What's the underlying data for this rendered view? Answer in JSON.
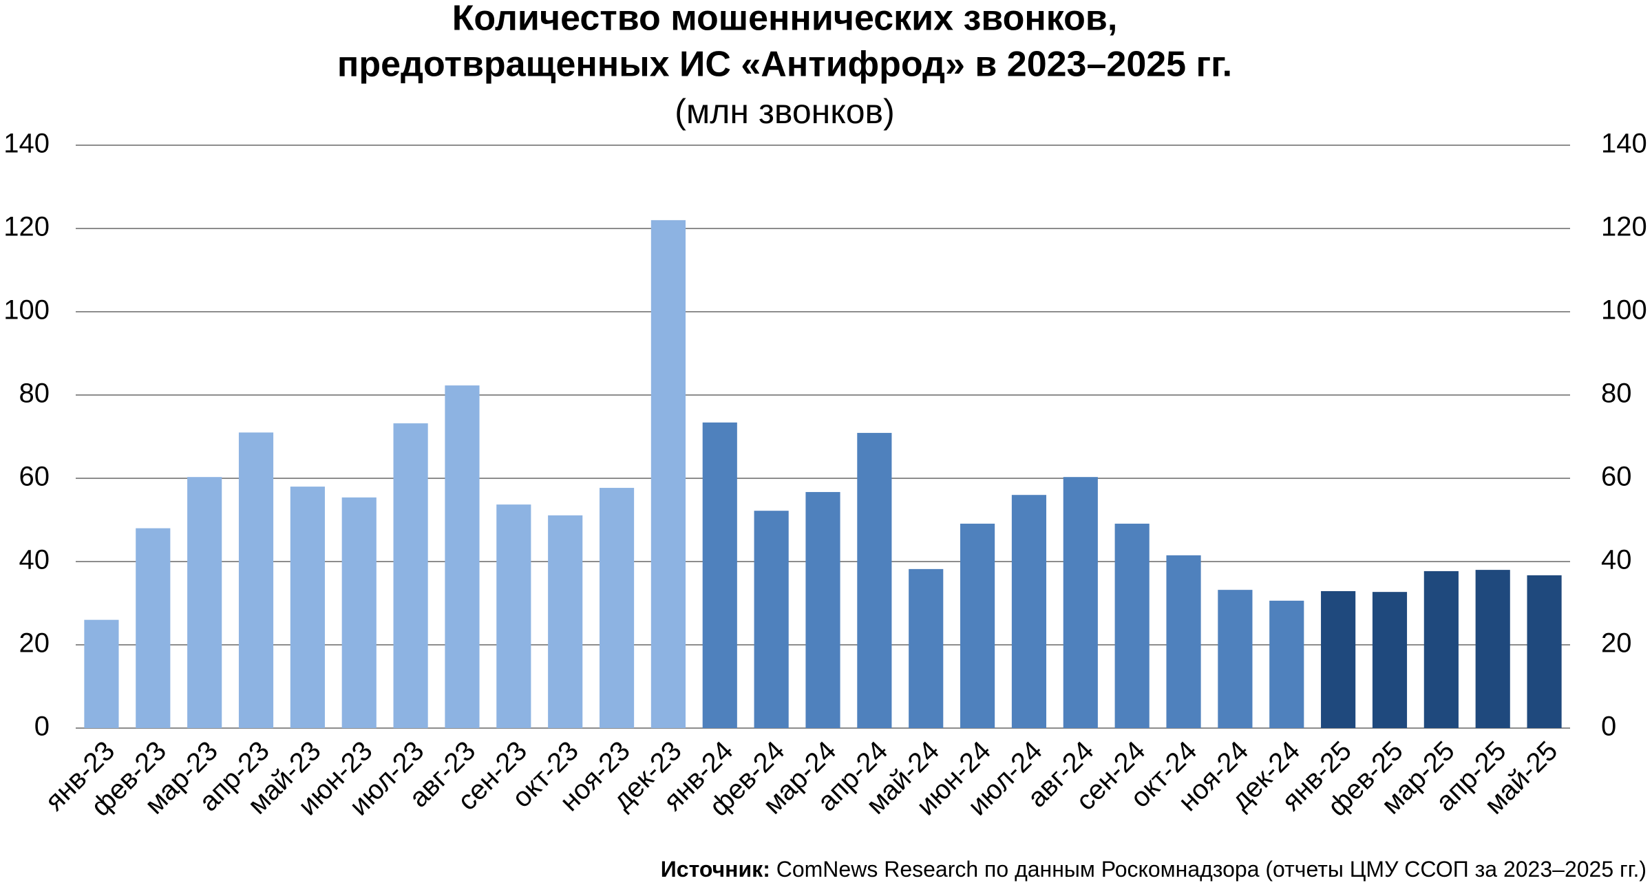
{
  "chart_data": {
    "type": "bar",
    "title": [
      "Количество мошеннических звонков,",
      "предотвращенных ИС «Антифрод» в 2023–2025 гг."
    ],
    "subtitle": "(млн звонков)",
    "categories": [
      "янв-23",
      "фев-23",
      "мар-23",
      "апр-23",
      "май-23",
      "июн-23",
      "июл-23",
      "авг-23",
      "сен-23",
      "окт-23",
      "ноя-23",
      "дек-23",
      "янв-24",
      "фев-24",
      "мар-24",
      "апр-24",
      "май-24",
      "июн-24",
      "июл-24",
      "авг-24",
      "сен-24",
      "окт-24",
      "ноя-24",
      "дек-24",
      "янв-25",
      "фев-25",
      "мар-25",
      "апр-25",
      "май-25"
    ],
    "values": [
      26,
      48,
      60.3,
      71,
      58,
      55.4,
      73.2,
      82.3,
      53.7,
      51.1,
      57.7,
      122,
      73.4,
      52.2,
      56.7,
      70.9,
      38.2,
      49.1,
      56,
      60.3,
      49.1,
      41.5,
      33.2,
      30.6,
      32.9,
      32.7,
      37.7,
      38,
      36.7
    ],
    "colors": [
      "#8db3e2",
      "#8db3e2",
      "#8db3e2",
      "#8db3e2",
      "#8db3e2",
      "#8db3e2",
      "#8db3e2",
      "#8db3e2",
      "#8db3e2",
      "#8db3e2",
      "#8db3e2",
      "#8db3e2",
      "#4f81bd",
      "#4f81bd",
      "#4f81bd",
      "#4f81bd",
      "#4f81bd",
      "#4f81bd",
      "#4f81bd",
      "#4f81bd",
      "#4f81bd",
      "#4f81bd",
      "#4f81bd",
      "#4f81bd",
      "#1f497d",
      "#1f497d",
      "#1f497d",
      "#1f497d",
      "#1f497d"
    ],
    "ylim": [
      0,
      140
    ],
    "yticks": [
      0,
      20,
      40,
      60,
      80,
      100,
      120,
      140
    ],
    "grid": true,
    "source_label": "Источник:",
    "source": "ComNews Research по данным Роскомнадзора (отчеты ЦМУ ССОП за 2023–2025 гг.)"
  }
}
